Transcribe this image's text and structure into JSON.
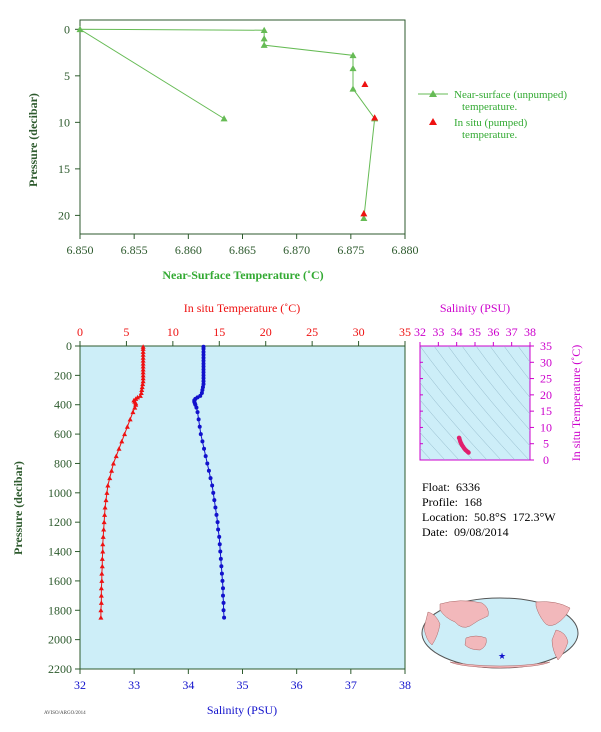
{
  "chart_data": [
    {
      "type": "line",
      "xlabel": "Near-Surface Temperature (˚C)",
      "ylabel": "Pressure (decibar)",
      "xlim": [
        6.85,
        6.88
      ],
      "ylim": [
        22,
        -1
      ],
      "xticks": [
        "6.850",
        "6.855",
        "6.860",
        "6.865",
        "6.870",
        "6.875",
        "6.880"
      ],
      "yticks": [
        "0",
        "5",
        "10",
        "15",
        "20"
      ],
      "legend_position": "right",
      "series": [
        {
          "name": "Near-surface (unpumped) temperature.",
          "x": [
            6.8633,
            6.85,
            6.867,
            6.867,
            6.867,
            6.8752,
            6.8752,
            6.8752,
            6.8772,
            6.8762
          ],
          "y": [
            9.6,
            0.0,
            0.1,
            1.0,
            1.7,
            2.8,
            4.2,
            6.4,
            9.6,
            20.3
          ]
        },
        {
          "name": "In situ (pumped) temperature.",
          "x": [
            6.8763,
            6.8772,
            6.8762
          ],
          "y": [
            5.9,
            9.5,
            19.8
          ]
        }
      ],
      "colors": {
        "series1": "#66bb55",
        "series2": "#ee1111",
        "axis_text": "#2d5a2d"
      }
    },
    {
      "type": "scatter",
      "title_top": "In situ Temperature (˚C)",
      "xlabel": "Salinity (PSU)",
      "ylabel": "Pressure (decibar)",
      "xlim_temperature": [
        0,
        35
      ],
      "xlim_salinity": [
        32,
        38
      ],
      "ylim": [
        2200,
        0
      ],
      "temperature_ticks": [
        "0",
        "5",
        "10",
        "15",
        "20",
        "25",
        "30",
        "35"
      ],
      "salinity_ticks": [
        "32",
        "33",
        "34",
        "35",
        "36",
        "37",
        "38"
      ],
      "pressure_ticks": [
        "0",
        "200",
        "400",
        "600",
        "800",
        "1000",
        "1200",
        "1400",
        "1600",
        "1800",
        "2000",
        "2200"
      ],
      "temperature": {
        "pressure": [
          5,
          20,
          40,
          60,
          80,
          100,
          120,
          140,
          160,
          180,
          200,
          220,
          240,
          260,
          280,
          300,
          320,
          340,
          350,
          360,
          370,
          380,
          390,
          400,
          420,
          450,
          500,
          550,
          600,
          650,
          700,
          750,
          800,
          850,
          900,
          950,
          1000,
          1050,
          1100,
          1150,
          1200,
          1250,
          1300,
          1350,
          1400,
          1450,
          1500,
          1550,
          1600,
          1650,
          1700,
          1750,
          1800,
          1850
        ],
        "values": [
          6.8,
          6.8,
          6.8,
          6.8,
          6.8,
          6.8,
          6.8,
          6.8,
          6.8,
          6.8,
          6.8,
          6.8,
          6.8,
          6.75,
          6.7,
          6.65,
          6.6,
          6.5,
          6.2,
          6.0,
          5.8,
          5.9,
          6.0,
          6.0,
          5.9,
          5.7,
          5.4,
          5.1,
          4.8,
          4.5,
          4.2,
          3.9,
          3.6,
          3.4,
          3.2,
          3.0,
          2.9,
          2.8,
          2.7,
          2.65,
          2.6,
          2.55,
          2.5,
          2.45,
          2.45,
          2.4,
          2.4,
          2.35,
          2.35,
          2.3,
          2.3,
          2.3,
          2.25,
          2.25
        ]
      },
      "salinity": {
        "pressure": [
          5,
          20,
          40,
          60,
          80,
          100,
          120,
          140,
          160,
          180,
          200,
          220,
          240,
          260,
          280,
          300,
          320,
          340,
          350,
          360,
          370,
          380,
          390,
          400,
          420,
          450,
          500,
          550,
          600,
          650,
          700,
          750,
          800,
          850,
          900,
          950,
          1000,
          1050,
          1100,
          1150,
          1200,
          1250,
          1300,
          1350,
          1400,
          1450,
          1500,
          1550,
          1600,
          1650,
          1700,
          1750,
          1800,
          1850
        ],
        "values": [
          34.28,
          34.28,
          34.28,
          34.28,
          34.28,
          34.28,
          34.28,
          34.28,
          34.28,
          34.28,
          34.28,
          34.28,
          34.28,
          34.28,
          34.27,
          34.26,
          34.25,
          34.22,
          34.17,
          34.13,
          34.11,
          34.11,
          34.12,
          34.13,
          34.15,
          34.17,
          34.19,
          34.21,
          34.23,
          34.26,
          34.29,
          34.32,
          34.35,
          34.38,
          34.41,
          34.44,
          34.46,
          34.48,
          34.5,
          34.52,
          34.54,
          34.55,
          34.57,
          34.58,
          34.59,
          34.6,
          34.61,
          34.62,
          34.63,
          34.64,
          34.64,
          34.65,
          34.65,
          34.66
        ]
      },
      "colors": {
        "temperature": "#ee1111",
        "salinity": "#1111cc",
        "background": "#cdeef8",
        "axis_text": "#2d5a2d"
      }
    },
    {
      "type": "scatter",
      "title": "Salinity (PSU)",
      "ylabel_right": "In situ Temperature (˚C)",
      "xlim": [
        32,
        38
      ],
      "ylim": [
        0,
        35
      ],
      "xticks": [
        "32",
        "33",
        "34",
        "35",
        "36",
        "37",
        "38"
      ],
      "yticks": [
        "0",
        "5",
        "10",
        "15",
        "20",
        "25",
        "30",
        "35"
      ],
      "salinity": [
        34.13,
        34.15,
        34.18,
        34.21,
        34.25,
        34.3,
        34.36,
        34.42,
        34.48,
        34.54,
        34.6,
        34.65
      ],
      "temperature": [
        6.8,
        6.6,
        6.0,
        5.5,
        5.0,
        4.5,
        4.0,
        3.5,
        3.1,
        2.8,
        2.5,
        2.3
      ],
      "colors": {
        "points": "#e0206e",
        "axis_text": "#cc00cc",
        "background": "#cdeef8"
      }
    }
  ],
  "info": {
    "float_label": "Float:",
    "float_value": "6336",
    "profile_label": "Profile:",
    "profile_value": "168",
    "location_label": "Location:",
    "location_value": "50.8°S  172.3°W",
    "date_label": "Date:",
    "date_value": "09/08/2014"
  },
  "footer": {
    "code": "AVISO/ARGO/2014"
  }
}
